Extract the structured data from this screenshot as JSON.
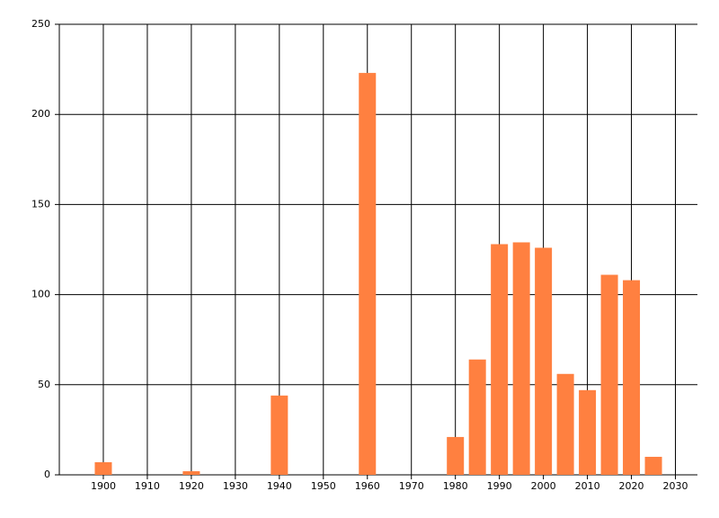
{
  "chart_data": {
    "type": "bar",
    "x": [
      1900,
      1920,
      1940,
      1960,
      1980,
      1985,
      1990,
      1995,
      2000,
      2005,
      2010,
      2015,
      2020,
      2025
    ],
    "values": [
      7,
      2,
      44,
      223,
      21,
      64,
      128,
      129,
      126,
      56,
      47,
      111,
      108,
      10
    ],
    "color": "#ff8040",
    "xlim": [
      1890,
      2035
    ],
    "xticks": [
      1900,
      1910,
      1920,
      1930,
      1940,
      1950,
      1960,
      1970,
      1980,
      1990,
      2000,
      2010,
      2020,
      2030
    ],
    "ylim": [
      0,
      250
    ],
    "yticks": [
      0,
      50,
      100,
      150,
      200,
      250
    ],
    "grid": true
  }
}
